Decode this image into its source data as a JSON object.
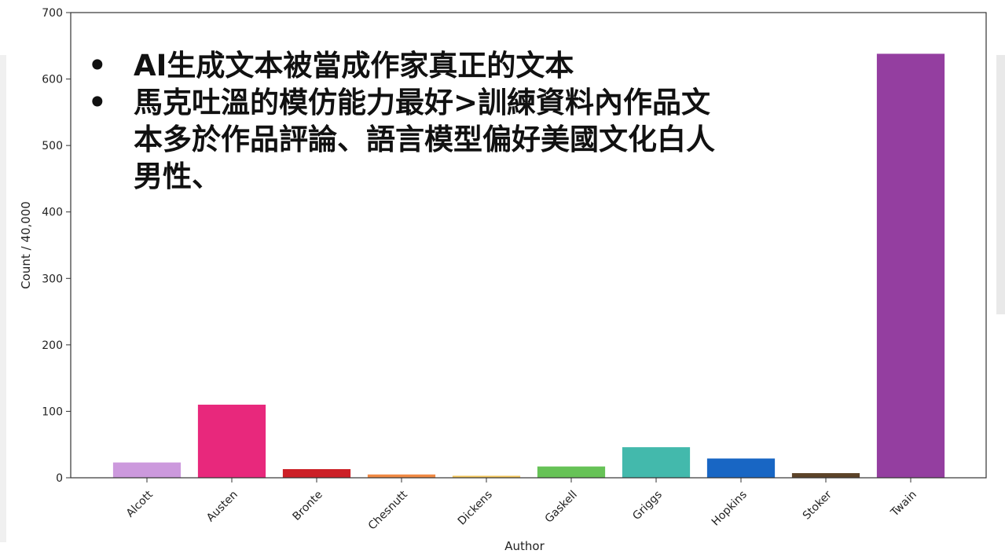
{
  "annotation": {
    "bullets": [
      {
        "marker": "•",
        "text": "AI生成文本被當成作家真正的文本"
      },
      {
        "marker": "•",
        "text": "馬克吐溫的模仿能力最好>訓練資料內作品文本多於作品評論、語言模型偏好美國文化白人男性、"
      }
    ]
  },
  "chart_data": {
    "type": "bar",
    "title": "",
    "xlabel": "Author",
    "ylabel": "Count / 40,000",
    "ylim": [
      0,
      700
    ],
    "yticks": [
      0,
      100,
      200,
      300,
      400,
      500,
      600,
      700
    ],
    "categories": [
      "Alcott",
      "Austen",
      "Bronte",
      "Chesnutt",
      "Dickens",
      "Gaskell",
      "Griggs",
      "Hopkins",
      "Stoker",
      "Twain"
    ],
    "values": [
      23,
      110,
      13,
      5,
      3,
      17,
      46,
      29,
      7,
      638
    ],
    "colors": [
      "#cc99dd",
      "#e8287c",
      "#cc1f26",
      "#f08a45",
      "#f2c55a",
      "#66c256",
      "#43b9ac",
      "#1866c4",
      "#5c4328",
      "#943ea0"
    ],
    "grid": false
  }
}
